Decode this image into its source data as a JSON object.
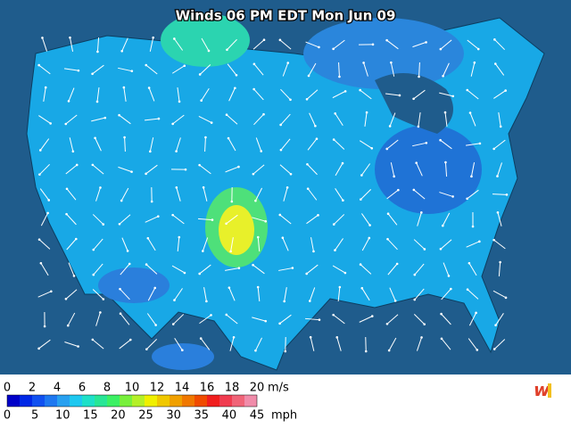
{
  "title": "Winds 06 PM EDT Mon Jun 09",
  "legend": {
    "colors": [
      "#0000c8",
      "#0028e6",
      "#1050f0",
      "#1e78f0",
      "#28a0f0",
      "#1ec8f0",
      "#1ee0c8",
      "#28e696",
      "#3cf064",
      "#78f03c",
      "#b4f028",
      "#f0f000",
      "#f0c800",
      "#f0a000",
      "#f07800",
      "#f04b00",
      "#f01e1e",
      "#f03c50",
      "#f06478",
      "#f08caa"
    ],
    "ms_ticks": [
      0,
      2,
      4,
      6,
      8,
      10,
      12,
      14,
      16,
      18,
      20
    ],
    "ms_unit": "m/s",
    "mph_ticks": [
      0,
      5,
      10,
      15,
      20,
      25,
      30,
      35,
      40,
      45
    ],
    "mph_unit": "mph"
  }
}
